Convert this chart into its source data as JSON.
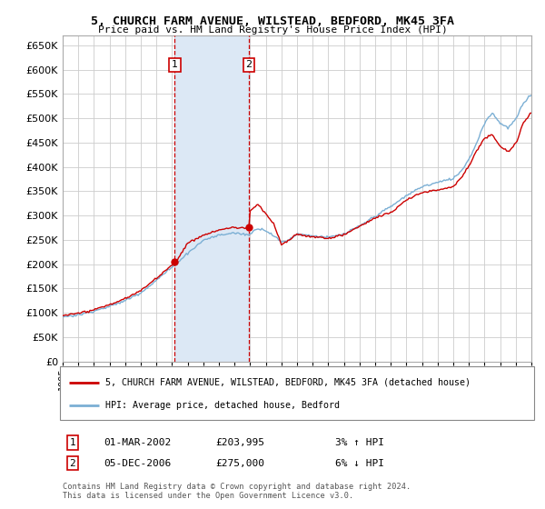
{
  "title1": "5, CHURCH FARM AVENUE, WILSTEAD, BEDFORD, MK45 3FA",
  "title2": "Price paid vs. HM Land Registry's House Price Index (HPI)",
  "legend_line1": "5, CHURCH FARM AVENUE, WILSTEAD, BEDFORD, MK45 3FA (detached house)",
  "legend_line2": "HPI: Average price, detached house, Bedford",
  "annotation1_date": "01-MAR-2002",
  "annotation1_price": "£203,995",
  "annotation1_hpi": "3% ↑ HPI",
  "annotation2_date": "05-DEC-2006",
  "annotation2_price": "£275,000",
  "annotation2_hpi": "6% ↓ HPI",
  "footer": "Contains HM Land Registry data © Crown copyright and database right 2024.\nThis data is licensed under the Open Government Licence v3.0.",
  "ylim": [
    0,
    670000
  ],
  "yticks": [
    0,
    50000,
    100000,
    150000,
    200000,
    250000,
    300000,
    350000,
    400000,
    450000,
    500000,
    550000,
    600000,
    650000
  ],
  "sale1_year": 2002.17,
  "sale1_price": 203995,
  "sale2_year": 2006.92,
  "sale2_price": 275000,
  "background_color": "#ffffff",
  "grid_color": "#cccccc",
  "hpi_color": "#7bafd4",
  "sold_color": "#cc0000",
  "highlight_color": "#dce8f5",
  "annotation_box_color": "#cc0000",
  "xmin": 1995,
  "xmax": 2025
}
